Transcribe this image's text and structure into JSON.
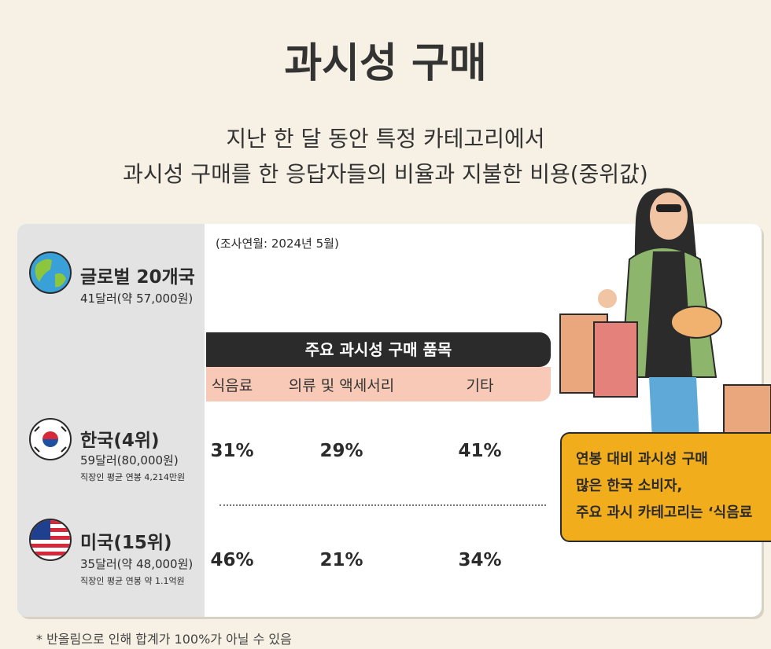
{
  "header": {
    "title": "과시성 구매",
    "subtitle": [
      "지난 한 달 동안 특정 카테고리에서",
      "과시성 구매를 한 응답자들의 비율과 지불한 비용(중위값)"
    ]
  },
  "survey_date": "(조사연월: 2024년 5월)",
  "regions": [
    {
      "name": "글로벌 20개국",
      "cost": "41달러(약 57,000원)"
    },
    {
      "name": "한국(4위)",
      "cost": "59달러(80,000원)",
      "note": "직장인 평균 연봉 4,214만원"
    },
    {
      "name": "미국(15위)",
      "cost": "35달러(약 48,000원)",
      "note": "직장인 평균 연봉 약 1.1억원"
    }
  ],
  "table": {
    "header": "주요 과시성 구매 품목",
    "columns": [
      "식음료",
      "의류 및 액세서리",
      "기타"
    ],
    "rows": [
      [
        "31%",
        "29%",
        "41%"
      ],
      [
        "46%",
        "21%",
        "34%"
      ]
    ]
  },
  "callout": [
    "연봉 대비 과시성 구매",
    "많은 한국 소비자,",
    "주요 과시 카테고리는 ‘식음료"
  ],
  "footnote": "* 반올림으로 인해 합계가 100%가 아닐 수 있음"
}
